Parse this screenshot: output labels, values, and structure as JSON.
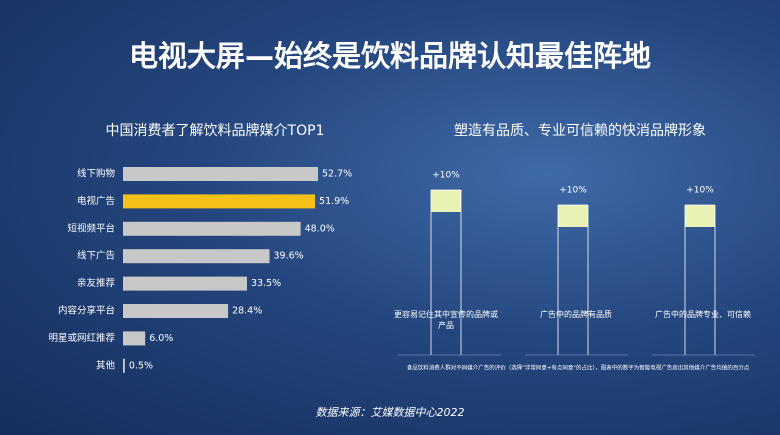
{
  "title": "电视大屏—始终是饮料品牌认知最佳阵地",
  "source": "数据来源：艾媒数据中心2022",
  "chart_data": [
    {
      "type": "hbar",
      "title": "中国消费者了解饮料品牌媒介TOP1",
      "categories": [
        "线下购物",
        "电视广告",
        "短视频平台",
        "线下广告",
        "亲友推荐",
        "内容分享平台",
        "明星或网红推荐",
        "其他"
      ],
      "values": [
        52.7,
        51.9,
        48.0,
        39.6,
        33.5,
        28.4,
        6.0,
        0.5
      ],
      "value_labels": [
        "52.7%",
        "51.9%",
        "48.0%",
        "39.6%",
        "33.5%",
        "28.4%",
        "6.0%",
        "0.5%"
      ],
      "colors": [
        "#c8c8c8",
        "#f5c018",
        "#c8c8c8",
        "#c8c8c8",
        "#c8c8c8",
        "#c8c8c8",
        "#c8c8c8",
        "#c8c8c8"
      ]
    },
    {
      "type": "callout",
      "title": "塑造有品质、专业可信赖的快消品牌形象",
      "categories": [
        "更容易记住其中宣传的品牌或产品",
        "广告中的品牌有品质",
        "广告中的品牌专业、可信赖"
      ],
      "values": [
        10,
        10,
        10
      ],
      "value_labels": [
        "+10%",
        "+10%",
        "+10%"
      ],
      "color": "#e9f2b4",
      "note": "食品饮料消费人群对不同媒介广告的评价（选择\"非常同意+有点同意\"的占比），图表中的数字为智能电视广告高出其他媒介广告均值的百分点"
    }
  ]
}
